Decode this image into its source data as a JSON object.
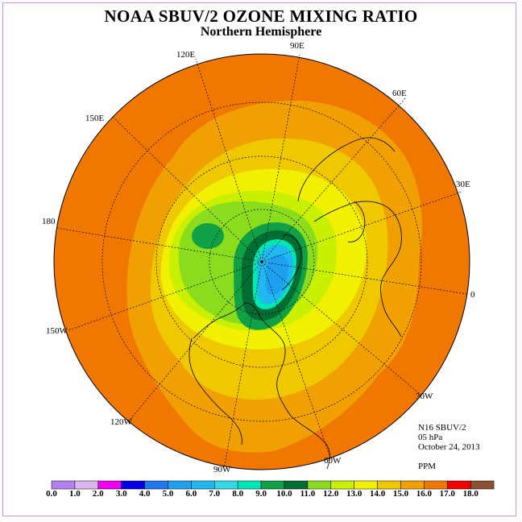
{
  "header": {
    "title": "NOAA SBUV/2 OZONE MIXING RATIO",
    "subtitle": "Northern Hemisphere"
  },
  "map": {
    "projection": "north polar stereographic",
    "meridian_labels": [
      "120E",
      "90E",
      "60E",
      "150E",
      "30E",
      "180",
      "0",
      "150W",
      "30W",
      "120W",
      "60W",
      "90W"
    ]
  },
  "info": {
    "instrument": "N16 SBUV/2",
    "level": "05 hPa",
    "date": "October 24, 2013",
    "units": "PPM"
  },
  "colorbar": {
    "ticks": [
      "0.0",
      "1.0",
      "2.0",
      "3.0",
      "4.0",
      "5.0",
      "6.0",
      "7.0",
      "8.0",
      "9.0",
      "10.0",
      "11.0",
      "12.0",
      "13.0",
      "14.0",
      "15.0",
      "16.0",
      "17.0",
      "18.0"
    ],
    "colors": [
      "#b580f0",
      "#dcb4f0",
      "#f000f0",
      "#0000e6",
      "#1e78f0",
      "#1ea0f0",
      "#20b8f0",
      "#30d8e8",
      "#00e6b4",
      "#10a046",
      "#006e32",
      "#8cdc1e",
      "#c8f000",
      "#f0f000",
      "#f0c800",
      "#f0a000",
      "#f07800",
      "#f00000",
      "#8c5032"
    ]
  }
}
